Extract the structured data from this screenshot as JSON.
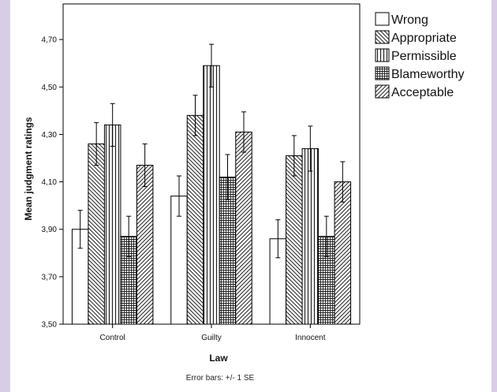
{
  "chart_data": {
    "type": "bar",
    "xlabel": "Law",
    "ylabel": "Mean judgment ratings",
    "ylim": [
      3.5,
      4.85
    ],
    "yticks": [
      "3,50",
      "3,70",
      "3,90",
      "4,10",
      "4,30",
      "4,50",
      "4,70"
    ],
    "yticks_values": [
      3.5,
      3.7,
      3.9,
      4.1,
      4.3,
      4.5,
      4.7
    ],
    "categories": [
      "Control",
      "Guilty",
      "Innocent"
    ],
    "series": [
      {
        "name": "Wrong",
        "values": [
          3.9,
          4.04,
          3.86
        ],
        "se": [
          0.08,
          0.085,
          0.08
        ],
        "pattern": "none"
      },
      {
        "name": "Appropriate",
        "values": [
          4.26,
          4.38,
          4.21
        ],
        "se": [
          0.09,
          0.085,
          0.085
        ],
        "pattern": "diag-back"
      },
      {
        "name": "Permissible",
        "values": [
          4.34,
          4.59,
          4.24
        ],
        "se": [
          0.09,
          0.09,
          0.095
        ],
        "pattern": "vertical"
      },
      {
        "name": "Blameworthy",
        "values": [
          3.87,
          4.12,
          3.87
        ],
        "se": [
          0.085,
          0.095,
          0.085
        ],
        "pattern": "grid"
      },
      {
        "name": "Acceptable",
        "values": [
          4.17,
          4.31,
          4.1
        ],
        "se": [
          0.09,
          0.085,
          0.085
        ],
        "pattern": "diag-fwd"
      }
    ],
    "legend_position": "top-right",
    "note": "Error bars: +/- 1 SE",
    "grid": false
  }
}
